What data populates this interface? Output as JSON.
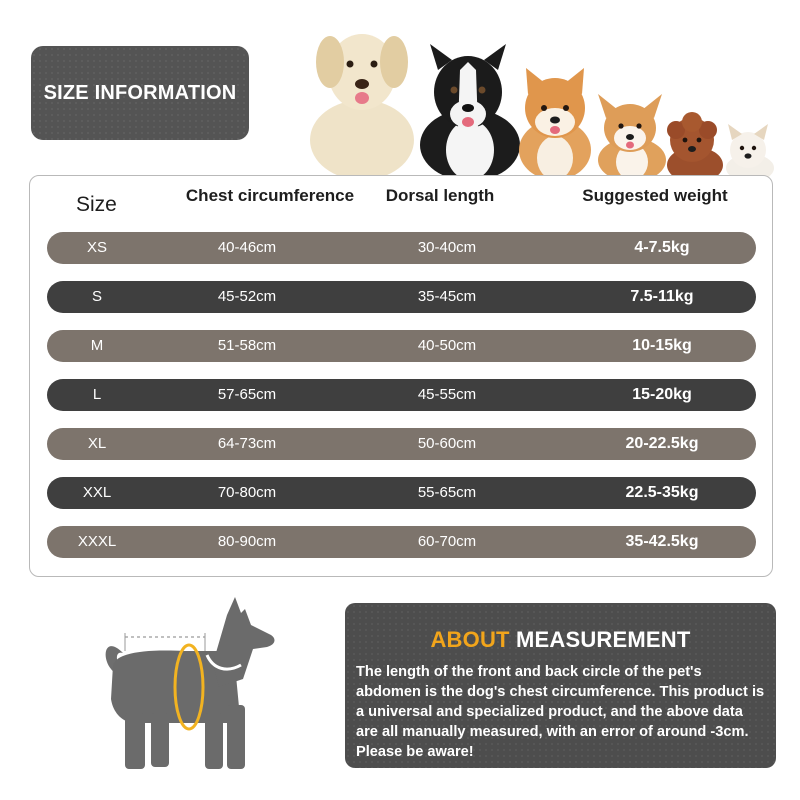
{
  "title": "SIZE INFORMATION",
  "table": {
    "headers": {
      "size": "Size",
      "chest": "Chest circumference",
      "dorsal": "Dorsal length",
      "weight": "Suggested weight"
    },
    "rows": [
      {
        "size": "XS",
        "chest": "40-46cm",
        "dorsal": "30-40cm",
        "weight": "4-7.5kg"
      },
      {
        "size": "S",
        "chest": "45-52cm",
        "dorsal": "35-45cm",
        "weight": "7.5-11kg"
      },
      {
        "size": "M",
        "chest": "51-58cm",
        "dorsal": "40-50cm",
        "weight": "10-15kg"
      },
      {
        "size": "L",
        "chest": "57-65cm",
        "dorsal": "45-55cm",
        "weight": "15-20kg"
      },
      {
        "size": "XL",
        "chest": "64-73cm",
        "dorsal": "50-60cm",
        "weight": "20-22.5kg"
      },
      {
        "size": "XXL",
        "chest": "70-80cm",
        "dorsal": "55-65cm",
        "weight": "22.5-35kg"
      },
      {
        "size": "XXXL",
        "chest": "80-90cm",
        "dorsal": "60-70cm",
        "weight": "35-42.5kg"
      }
    ]
  },
  "about": {
    "title_accent": "ABOUT",
    "title_rest": "MEASUREMENT",
    "body": "The length of the front and back circle of the pet's abdomen is the dog's chest circumference. This product is a universal and specialized product, and the above data are all manually measured, with an error of around -3cm. Please be aware!"
  },
  "colors": {
    "row_light": "#7d746c",
    "row_dark": "#3f3f3f",
    "accent": "#f2a51b",
    "badge": "#545454"
  },
  "icons": {
    "dogs": "dog-breeds-photo",
    "silhouette": "dog-silhouette-icon"
  }
}
